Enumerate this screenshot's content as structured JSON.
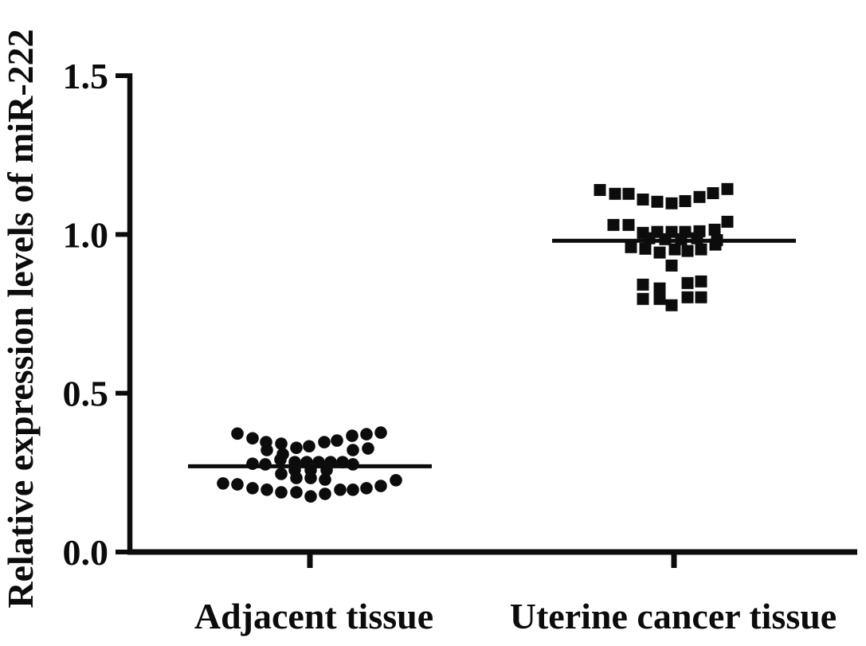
{
  "chart_data": {
    "type": "scatter",
    "subtype": "column-scatter-dot-plot",
    "title": "",
    "xlabel": "",
    "ylabel": "Relative expression levels of miR-222",
    "ylim": [
      0.0,
      1.5
    ],
    "ytick_labels": [
      "0.0",
      "0.5",
      "1.0",
      "1.5"
    ],
    "grid": false,
    "legend": "none",
    "ink_color": "#0c0c0c",
    "background_color": "#ffffff",
    "categories": [
      "Adjacent tissue",
      "Uterine cancer tissue"
    ],
    "series": [
      {
        "name": "Adjacent tissue",
        "marker": "circle",
        "mean": 0.27,
        "points_dx_value": [
          [
            -91,
            0.373
          ],
          [
            -72,
            0.358
          ],
          [
            -55,
            0.346
          ],
          [
            -54,
            0.321
          ],
          [
            -36,
            0.341
          ],
          [
            -34,
            0.308
          ],
          [
            -17,
            0.328
          ],
          [
            -1,
            0.333
          ],
          [
            18,
            0.346
          ],
          [
            34,
            0.351
          ],
          [
            53,
            0.366
          ],
          [
            54,
            0.321
          ],
          [
            71,
            0.371
          ],
          [
            73,
            0.326
          ],
          [
            89,
            0.376
          ],
          [
            -72,
            0.278
          ],
          [
            -56,
            0.276
          ],
          [
            -37,
            0.291
          ],
          [
            -36,
            0.246
          ],
          [
            -19,
            0.283
          ],
          [
            -4,
            0.283
          ],
          [
            11,
            0.283
          ],
          [
            26,
            0.283
          ],
          [
            41,
            0.283
          ],
          [
            -19,
            0.258
          ],
          [
            1,
            0.258
          ],
          [
            21,
            0.258
          ],
          [
            54,
            0.276
          ],
          [
            -109,
            0.216
          ],
          [
            -91,
            0.213
          ],
          [
            -72,
            0.201
          ],
          [
            -54,
            0.196
          ],
          [
            -36,
            0.188
          ],
          [
            -17,
            0.233
          ],
          [
            -17,
            0.188
          ],
          [
            1,
            0.233
          ],
          [
            1,
            0.175
          ],
          [
            19,
            0.228
          ],
          [
            19,
            0.183
          ],
          [
            38,
            0.196
          ],
          [
            54,
            0.196
          ],
          [
            71,
            0.201
          ],
          [
            89,
            0.208
          ],
          [
            108,
            0.226
          ]
        ]
      },
      {
        "name": "Uterine cancer tissue",
        "marker": "square",
        "mean": 0.98,
        "points_dx_value": [
          [
            -93,
            1.14
          ],
          [
            -74,
            1.128
          ],
          [
            -57,
            1.128
          ],
          [
            -39,
            1.11
          ],
          [
            -21,
            1.103
          ],
          [
            -3,
            1.098
          ],
          [
            14,
            1.105
          ],
          [
            32,
            1.118
          ],
          [
            49,
            1.13
          ],
          [
            67,
            1.143
          ],
          [
            -76,
            1.03
          ],
          [
            -57,
            1.03
          ],
          [
            51,
            1.015
          ],
          [
            67,
            1.04
          ],
          [
            -39,
            1.005
          ],
          [
            -21,
            1.008
          ],
          [
            -3,
            1.008
          ],
          [
            14,
            1.008
          ],
          [
            32,
            1.01
          ],
          [
            -31,
            0.988
          ],
          [
            -11,
            0.985
          ],
          [
            9,
            0.985
          ],
          [
            29,
            0.988
          ],
          [
            54,
            0.982
          ],
          [
            -54,
            0.96
          ],
          [
            -36,
            0.955
          ],
          [
            -18,
            0.943
          ],
          [
            1,
            0.953
          ],
          [
            17,
            0.948
          ],
          [
            34,
            0.953
          ],
          [
            52,
            0.968
          ],
          [
            -3,
            0.902
          ],
          [
            -39,
            0.842
          ],
          [
            -18,
            0.83
          ],
          [
            17,
            0.847
          ],
          [
            34,
            0.852
          ],
          [
            -39,
            0.797
          ],
          [
            -18,
            0.797
          ],
          [
            -3,
            0.777
          ],
          [
            17,
            0.802
          ],
          [
            34,
            0.802
          ]
        ]
      }
    ]
  }
}
